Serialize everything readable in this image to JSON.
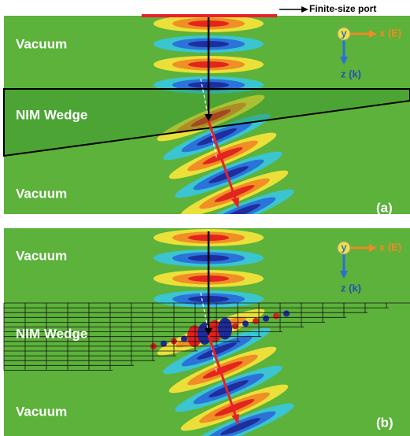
{
  "port_label": "Finite-size port",
  "panels": [
    {
      "top_label": "Vacuum",
      "wedge_label": "NIM Wedge",
      "bottom_label": "Vacuum",
      "panel_label": "(a)",
      "axis_y": "y",
      "axis_x": "x (E)",
      "axis_z": "z (k)"
    },
    {
      "top_label": "Vacuum",
      "wedge_label": "NIM Wedge",
      "bottom_label": "Vacuum",
      "panel_label": "(b)",
      "axis_y": "y",
      "axis_x": "x (E)",
      "axis_z": "z (k)"
    }
  ]
}
